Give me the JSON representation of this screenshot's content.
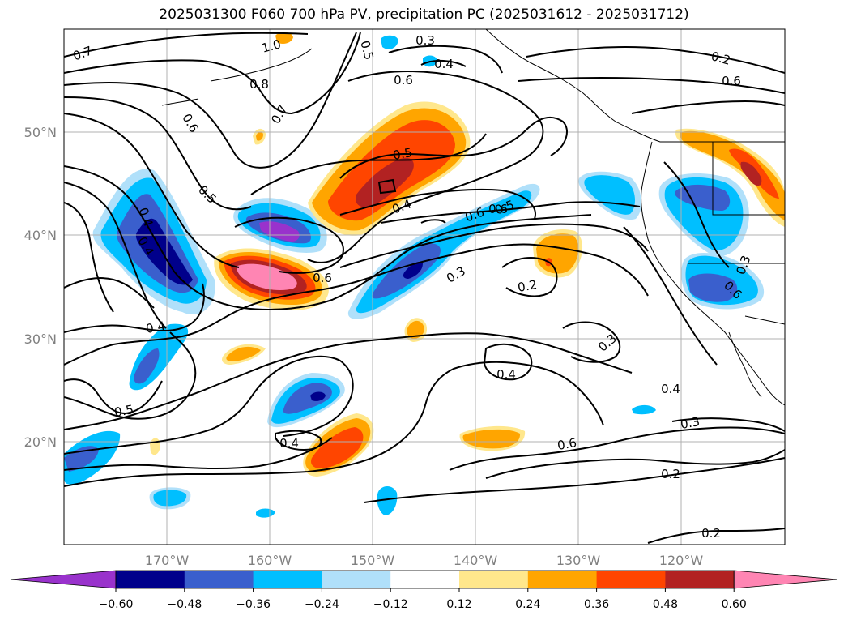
{
  "title": "2025031300 F060 700 hPa PV, precipitation PC (2025031612 - 2025031712)",
  "map": {
    "lon_labels": [
      "170°W",
      "160°W",
      "150°W",
      "140°W",
      "130°W",
      "120°W"
    ],
    "lat_labels": [
      "50°N",
      "40°N",
      "30°N",
      "20°N"
    ],
    "contour_labels": [
      "0.7",
      "1.0",
      "0.8",
      "0.7",
      "0.6",
      "0.5",
      "0.5",
      "0.3",
      "0.4",
      "0.6",
      "0.6",
      "0.5",
      "0.5",
      "0.4",
      "0.6",
      "0.6",
      "0.3",
      "0.4",
      "0.6",
      "0.3",
      "0.2",
      "0.4",
      "0.3",
      "0.6",
      "0.4",
      "0.6",
      "0.5",
      "0.2",
      "0.4",
      "0.4",
      "0.3",
      "0.4",
      "0.2",
      "0.2"
    ]
  },
  "colorbar": {
    "tick_labels": [
      "−0.60",
      "−0.48",
      "−0.36",
      "−0.24",
      "−0.12",
      "0.12",
      "0.24",
      "0.36",
      "0.48",
      "0.60"
    ],
    "colors": [
      "#9932cc",
      "#00008b",
      "#3a5fcd",
      "#00bfff",
      "#b0e0fa",
      "#ffffff",
      "#ffe78c",
      "#ffa500",
      "#ff4500",
      "#b22222",
      "#ff85b3"
    ]
  }
}
